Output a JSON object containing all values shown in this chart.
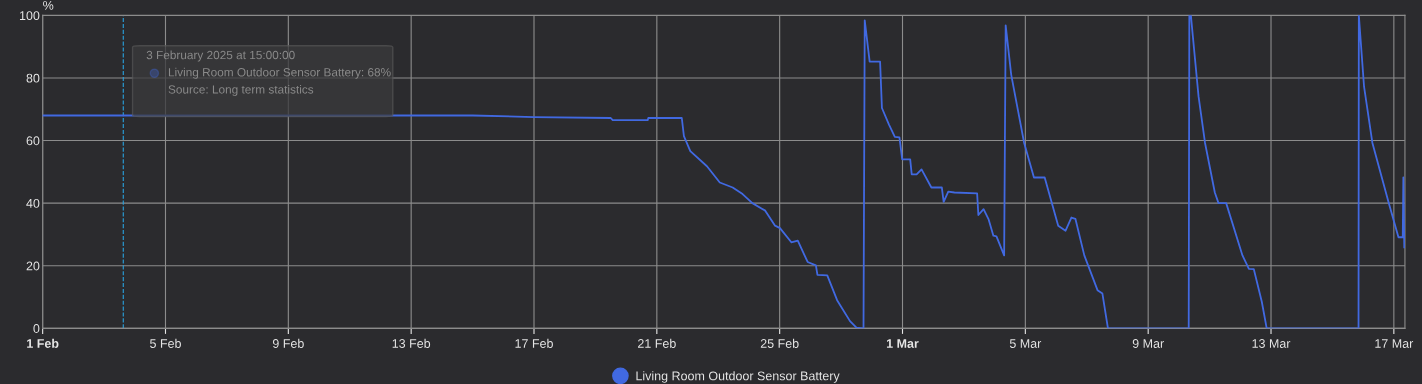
{
  "chart_data": {
    "type": "line",
    "ylabel": "%",
    "x": [
      "2025-02-01T00:00",
      "2025-02-15T00:00",
      "2025-02-17T00:00",
      "2025-02-19T12:00",
      "2025-02-19T13:30",
      "2025-02-20T16:50",
      "2025-02-20T17:20",
      "2025-02-21T19:30",
      "2025-02-21T21:10",
      "2025-02-22T02:10",
      "2025-02-22T15:10",
      "2025-02-23T01:12",
      "2025-02-23T11:17",
      "2025-02-23T19:00",
      "2025-02-24T02:40",
      "2025-02-24T12:43",
      "2025-02-24T20:24",
      "2025-02-25T00:14",
      "2025-02-25T09:07",
      "2025-02-25T14:10",
      "2025-02-25T21:50",
      "2025-02-26T04:19",
      "2025-02-26T05:31",
      "2025-02-26T13:12",
      "2025-02-26T20:53",
      "2025-02-27T06:58",
      "2025-02-27T12:00",
      "2025-02-27T17:02",
      "2025-02-27T17:31",
      "2025-02-27T18:29",
      "2025-02-27T22:19",
      "2025-02-28T06:29",
      "2025-02-28T07:55",
      "2025-02-28T13:26",
      "2025-02-28T18:00",
      "2025-02-28T21:36",
      "2025-02-28T23:46",
      "2025-03-01T06:00",
      "2025-03-01T07:12",
      "2025-03-01T11:02",
      "2025-03-01T14:53",
      "2025-03-01T22:34",
      "2025-03-02T06:43",
      "2025-03-02T08:10",
      "2025-03-02T11:46",
      "2025-03-02T16:34",
      "2025-03-03T10:19",
      "2025-03-03T11:17",
      "2025-03-03T15:22",
      "2025-03-03T19:12",
      "2025-03-03T23:02",
      "2025-03-04T01:26",
      "2025-03-04T07:26",
      "2025-03-04T08:38",
      "2025-03-04T12:58",
      "2025-03-04T23:02",
      "2025-03-05T06:43",
      "2025-03-05T15:07",
      "2025-03-06T01:41",
      "2025-03-06T07:26",
      "2025-03-06T12:00",
      "2025-03-06T15:07",
      "2025-03-06T22:05",
      "2025-03-07T08:24",
      "2025-03-07T12:14",
      "2025-03-07T16:34",
      "2025-03-10T07:41",
      "2025-03-10T08:10",
      "2025-03-10T09:22",
      "2025-03-10T15:22",
      "2025-03-10T20:24",
      "2025-03-11T04:05",
      "2025-03-11T06:58",
      "2025-03-11T12:58",
      "2025-03-12T01:41",
      "2025-03-12T06:43",
      "2025-03-12T10:34",
      "2025-03-12T16:48",
      "2025-03-12T20:38",
      "2025-03-15T20:24",
      "2025-03-15T20:38",
      "2025-03-16T00:43",
      "2025-03-16T07:12",
      "2025-03-16T19:55",
      "2025-03-17T03:36",
      "2025-03-17T06:58",
      "2025-03-17T07:26",
      "2025-03-17T08:10"
    ],
    "series": [
      {
        "name": "Living Room Outdoor Sensor Battery",
        "color": "#4169e1",
        "values": [
          68,
          68,
          67.5,
          67.2,
          66.5,
          66.5,
          67.2,
          67.2,
          61.4,
          56.6,
          51.8,
          46.6,
          45.0,
          42.9,
          40.0,
          37.6,
          32.8,
          32.0,
          27.5,
          28.0,
          21.2,
          20.1,
          17.1,
          16.9,
          9.0,
          2.3,
          0.2,
          0,
          0,
          98.4,
          85.2,
          85.2,
          70.4,
          65.1,
          61.2,
          61.0,
          54.0,
          54.0,
          49.2,
          49.2,
          50.8,
          45.0,
          45.0,
          40.4,
          43.7,
          43.4,
          43.1,
          36.2,
          38.1,
          34.9,
          29.6,
          29.4,
          23.3,
          96.8,
          81.0,
          59.3,
          48.2,
          48.2,
          32.8,
          31.2,
          35.4,
          35.0,
          23.3,
          12.2,
          11.1,
          0,
          0,
          100,
          100,
          74.1,
          59.3,
          43.4,
          40.0,
          40.0,
          23.3,
          19.0,
          18.9,
          8.5,
          0,
          0,
          100,
          77.2,
          59.3,
          40.2,
          29.1,
          29.1,
          48.2,
          25.9
        ]
      }
    ],
    "xlim": [
      "2025-02-01T00:00",
      "2025-03-17T08:40"
    ],
    "xticks": [
      {
        "value": "2025-02-01",
        "label": "1 Feb"
      },
      {
        "value": "2025-02-05",
        "label": "5 Feb"
      },
      {
        "value": "2025-02-09",
        "label": "9 Feb"
      },
      {
        "value": "2025-02-13",
        "label": "13 Feb"
      },
      {
        "value": "2025-02-17",
        "label": "17 Feb"
      },
      {
        "value": "2025-02-21",
        "label": "21 Feb"
      },
      {
        "value": "2025-02-25",
        "label": "25 Feb"
      },
      {
        "value": "2025-03-01",
        "label": "1 Mar"
      },
      {
        "value": "2025-03-05",
        "label": "5 Mar"
      },
      {
        "value": "2025-03-09",
        "label": "9 Mar"
      },
      {
        "value": "2025-03-13",
        "label": "13 Mar"
      },
      {
        "value": "2025-03-17",
        "label": "17 Mar"
      }
    ],
    "ylim": [
      0,
      100
    ],
    "yticks": [
      0,
      20,
      40,
      60,
      80,
      100
    ],
    "grid": true,
    "legend": "bottom",
    "marker": "none",
    "line_style": "solid",
    "ref_lines": [
      {
        "axis": "x",
        "value": "2025-02-03T15:00",
        "label": null,
        "color": "#29a3e0",
        "line_style": "dashed"
      }
    ],
    "annotations": [
      "3 February 2025 at 15:00:00",
      "Living Room Outdoor Sensor Battery: 68%",
      "Source: Long term statistics"
    ]
  }
}
